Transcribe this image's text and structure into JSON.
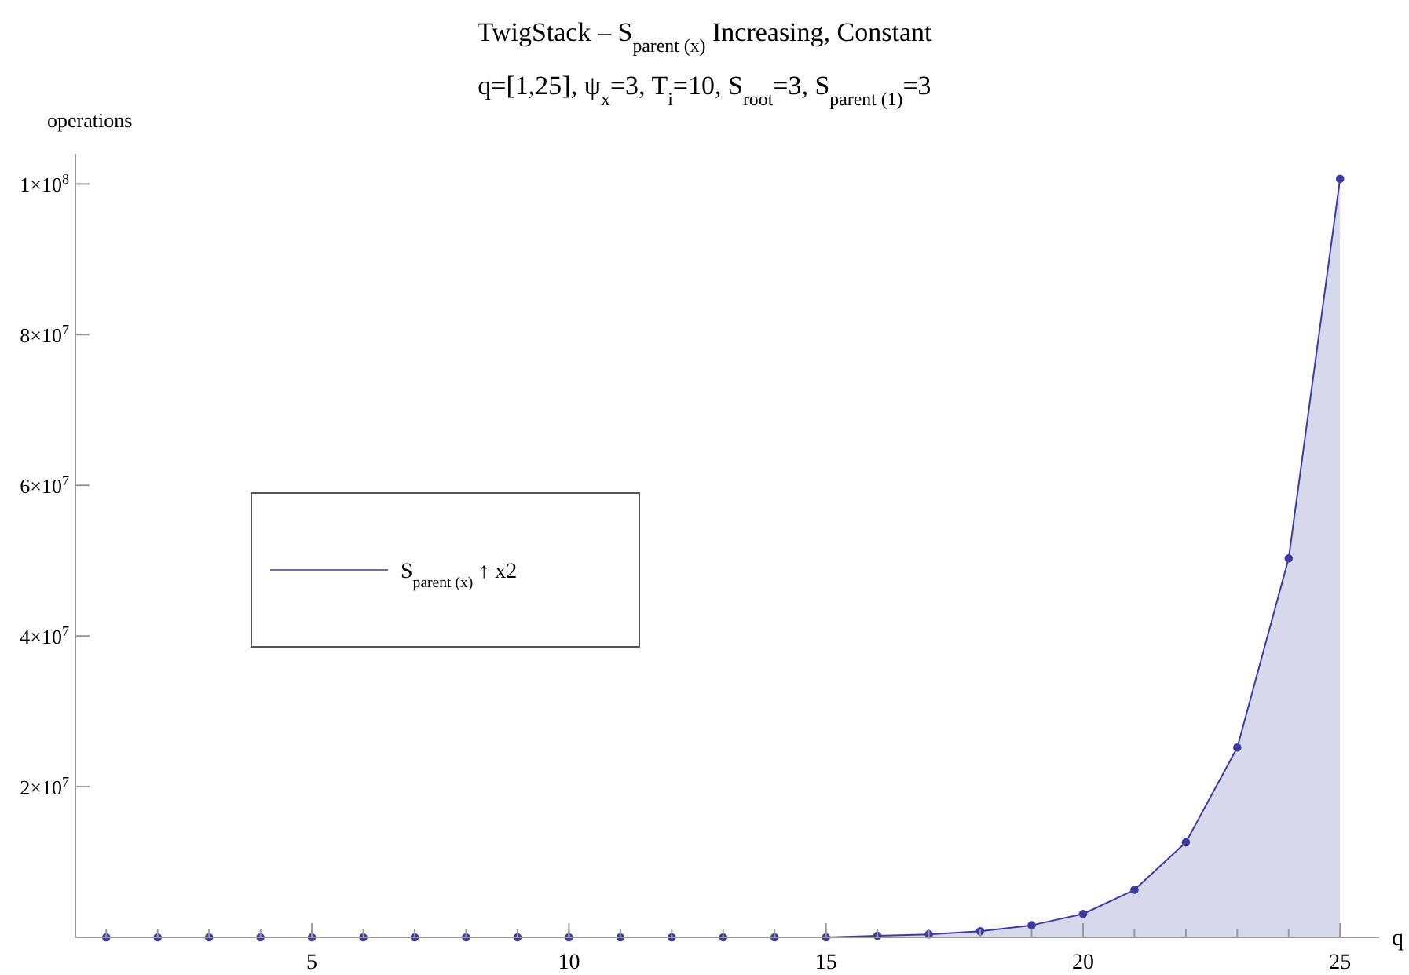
{
  "chart_data": {
    "type": "area",
    "title": "TwigStack – S$_{parent (x)}$ Increasing, Constant",
    "subtitle": "q=[1,25], ψ$_{x}$=3, T$_{i}$=10, S$_{root}$=3, S$_{parent (1)}$=3",
    "xlabel": "q",
    "ylabel": "operations",
    "x": [
      1,
      2,
      3,
      4,
      5,
      6,
      7,
      8,
      9,
      10,
      11,
      12,
      13,
      14,
      15,
      16,
      17,
      18,
      19,
      20,
      21,
      22,
      23,
      24,
      25
    ],
    "series": [
      {
        "name": "S$_{parent (x)}$ ↑ x2",
        "color": "#3c3ca0",
        "values": [
          0,
          0,
          0,
          0,
          0,
          0,
          0,
          0,
          0,
          0,
          0,
          0,
          0,
          0,
          0,
          200000,
          400000,
          800000,
          1600000,
          3100000,
          6300000,
          12600000,
          25200000,
          50300000,
          100700000
        ]
      }
    ],
    "xlim": [
      0.4,
      25.76
    ],
    "xticks": [
      5,
      10,
      15,
      20,
      25
    ],
    "ylim": [
      0,
      104000000
    ],
    "yticks": [
      {
        "value": 20000000,
        "label": "2×10$^{7}$"
      },
      {
        "value": 40000000,
        "label": "4×10$^{7}$"
      },
      {
        "value": 60000000,
        "label": "6×10$^{7}$"
      },
      {
        "value": 80000000,
        "label": "8×10$^{7}$"
      },
      {
        "value": 100000000,
        "label": "1×10$^{8}$"
      }
    ],
    "marker": "circle",
    "legend": "left",
    "grid": false
  }
}
